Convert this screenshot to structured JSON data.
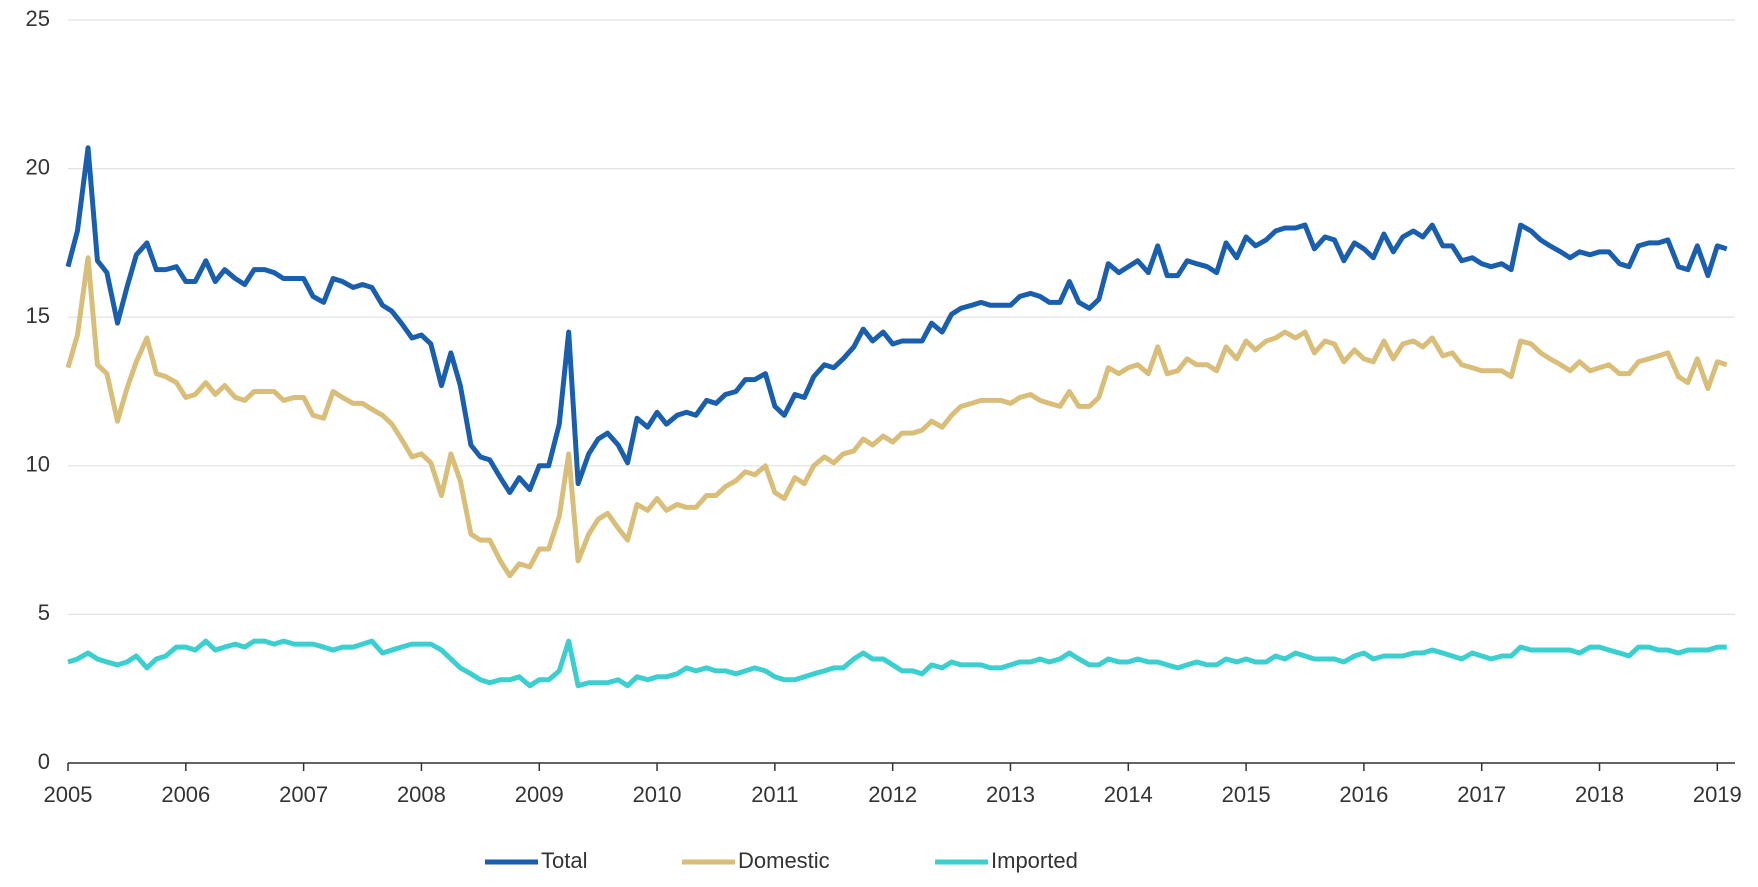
{
  "chart_data": {
    "type": "line",
    "x": [
      2005,
      2005.08,
      2005.17,
      2005.25,
      2005.33,
      2005.42,
      2005.5,
      2005.58,
      2005.67,
      2005.75,
      2005.83,
      2005.92,
      2006,
      2006.08,
      2006.17,
      2006.25,
      2006.33,
      2006.42,
      2006.5,
      2006.58,
      2006.67,
      2006.75,
      2006.83,
      2006.92,
      2007,
      2007.08,
      2007.17,
      2007.25,
      2007.33,
      2007.42,
      2007.5,
      2007.58,
      2007.67,
      2007.75,
      2007.83,
      2007.92,
      2008,
      2008.08,
      2008.17,
      2008.25,
      2008.33,
      2008.42,
      2008.5,
      2008.58,
      2008.67,
      2008.75,
      2008.83,
      2008.92,
      2009,
      2009.08,
      2009.17,
      2009.25,
      2009.33,
      2009.42,
      2009.5,
      2009.58,
      2009.67,
      2009.75,
      2009.83,
      2009.92,
      2010,
      2010.08,
      2010.17,
      2010.25,
      2010.33,
      2010.42,
      2010.5,
      2010.58,
      2010.67,
      2010.75,
      2010.83,
      2010.92,
      2011,
      2011.08,
      2011.17,
      2011.25,
      2011.33,
      2011.42,
      2011.5,
      2011.58,
      2011.67,
      2011.75,
      2011.83,
      2011.92,
      2012,
      2012.08,
      2012.17,
      2012.25,
      2012.33,
      2012.42,
      2012.5,
      2012.58,
      2012.67,
      2012.75,
      2012.83,
      2012.92,
      2013,
      2013.08,
      2013.17,
      2013.25,
      2013.33,
      2013.42,
      2013.5,
      2013.58,
      2013.67,
      2013.75,
      2013.83,
      2013.92,
      2014,
      2014.08,
      2014.17,
      2014.25,
      2014.33,
      2014.42,
      2014.5,
      2014.58,
      2014.67,
      2014.75,
      2014.83,
      2014.92,
      2015,
      2015.08,
      2015.17,
      2015.25,
      2015.33,
      2015.42,
      2015.5,
      2015.58,
      2015.67,
      2015.75,
      2015.83,
      2015.92,
      2016,
      2016.08,
      2016.17,
      2016.25,
      2016.33,
      2016.42,
      2016.5,
      2016.58,
      2016.67,
      2016.75,
      2016.83,
      2016.92,
      2017,
      2017.08,
      2017.17,
      2017.25,
      2017.33,
      2017.42,
      2017.5,
      2017.58,
      2017.67,
      2017.75,
      2017.83,
      2017.92,
      2018,
      2018.08,
      2018.17,
      2018.25,
      2018.33,
      2018.42,
      2018.5,
      2018.58,
      2018.67,
      2018.75,
      2018.83,
      2018.92,
      2019,
      2019.08
    ],
    "series": [
      {
        "name": "Total",
        "color": "#1a5fad",
        "values": [
          16.7,
          17.9,
          20.7,
          16.9,
          16.5,
          14.8,
          16.0,
          17.1,
          17.5,
          16.6,
          16.6,
          16.7,
          16.2,
          16.2,
          16.9,
          16.2,
          16.6,
          16.3,
          16.1,
          16.6,
          16.6,
          16.5,
          16.3,
          16.3,
          16.3,
          15.7,
          15.5,
          16.3,
          16.2,
          16.0,
          16.1,
          16.0,
          15.4,
          15.2,
          14.8,
          14.3,
          14.4,
          14.1,
          12.7,
          13.8,
          12.7,
          10.7,
          10.3,
          10.2,
          9.6,
          9.1,
          9.6,
          9.2,
          10.0,
          10.0,
          11.4,
          14.5,
          9.4,
          10.4,
          10.9,
          11.1,
          10.7,
          10.1,
          11.6,
          11.3,
          11.8,
          11.4,
          11.7,
          11.8,
          11.7,
          12.2,
          12.1,
          12.4,
          12.5,
          12.9,
          12.9,
          13.1,
          12.0,
          11.7,
          12.4,
          12.3,
          13.0,
          13.4,
          13.3,
          13.6,
          14.0,
          14.6,
          14.2,
          14.5,
          14.1,
          14.2,
          14.2,
          14.2,
          14.8,
          14.5,
          15.1,
          15.3,
          15.4,
          15.5,
          15.4,
          15.4,
          15.4,
          15.7,
          15.8,
          15.7,
          15.5,
          15.5,
          16.2,
          15.5,
          15.3,
          15.6,
          16.8,
          16.5,
          16.7,
          16.9,
          16.5,
          17.4,
          16.4,
          16.4,
          16.9,
          16.8,
          16.7,
          16.5,
          17.5,
          17.0,
          17.7,
          17.4,
          17.6,
          17.9,
          18.0,
          18.0,
          18.1,
          17.3,
          17.7,
          17.6,
          16.9,
          17.5,
          17.3,
          17.0,
          17.8,
          17.2,
          17.7,
          17.9,
          17.7,
          18.1,
          17.4,
          17.4,
          16.9,
          17.0,
          16.8,
          16.7,
          16.8,
          16.6,
          18.1,
          17.9,
          17.6,
          17.4,
          17.2,
          17.0,
          17.2,
          17.1,
          17.2,
          17.2,
          16.8,
          16.7,
          17.4,
          17.5,
          17.5,
          17.6,
          16.7,
          16.6,
          17.4,
          16.4,
          17.4,
          17.3
        ]
      },
      {
        "name": "Domestic",
        "color": "#d9be7a",
        "values": [
          13.3,
          14.4,
          17.0,
          13.4,
          13.1,
          11.5,
          12.6,
          13.5,
          14.3,
          13.1,
          13.0,
          12.8,
          12.3,
          12.4,
          12.8,
          12.4,
          12.7,
          12.3,
          12.2,
          12.5,
          12.5,
          12.5,
          12.2,
          12.3,
          12.3,
          11.7,
          11.6,
          12.5,
          12.3,
          12.1,
          12.1,
          11.9,
          11.7,
          11.4,
          10.9,
          10.3,
          10.4,
          10.1,
          9.0,
          10.4,
          9.5,
          7.7,
          7.5,
          7.5,
          6.8,
          6.3,
          6.7,
          6.6,
          7.2,
          7.2,
          8.3,
          10.4,
          6.8,
          7.7,
          8.2,
          8.4,
          7.9,
          7.5,
          8.7,
          8.5,
          8.9,
          8.5,
          8.7,
          8.6,
          8.6,
          9.0,
          9.0,
          9.3,
          9.5,
          9.8,
          9.7,
          10.0,
          9.1,
          8.9,
          9.6,
          9.4,
          10.0,
          10.3,
          10.1,
          10.4,
          10.5,
          10.9,
          10.7,
          11.0,
          10.8,
          11.1,
          11.1,
          11.2,
          11.5,
          11.3,
          11.7,
          12.0,
          12.1,
          12.2,
          12.2,
          12.2,
          12.1,
          12.3,
          12.4,
          12.2,
          12.1,
          12.0,
          12.5,
          12.0,
          12.0,
          12.3,
          13.3,
          13.1,
          13.3,
          13.4,
          13.1,
          14.0,
          13.1,
          13.2,
          13.6,
          13.4,
          13.4,
          13.2,
          14.0,
          13.6,
          14.2,
          13.9,
          14.2,
          14.3,
          14.5,
          14.3,
          14.5,
          13.8,
          14.2,
          14.1,
          13.5,
          13.9,
          13.6,
          13.5,
          14.2,
          13.6,
          14.1,
          14.2,
          14.0,
          14.3,
          13.7,
          13.8,
          13.4,
          13.3,
          13.2,
          13.2,
          13.2,
          13.0,
          14.2,
          14.1,
          13.8,
          13.6,
          13.4,
          13.2,
          13.5,
          13.2,
          13.3,
          13.4,
          13.1,
          13.1,
          13.5,
          13.6,
          13.7,
          13.8,
          13.0,
          12.8,
          13.6,
          12.6,
          13.5,
          13.4
        ]
      },
      {
        "name": "Imported",
        "color": "#3ccfcf",
        "values": [
          3.4,
          3.5,
          3.7,
          3.5,
          3.4,
          3.3,
          3.4,
          3.6,
          3.2,
          3.5,
          3.6,
          3.9,
          3.9,
          3.8,
          4.1,
          3.8,
          3.9,
          4.0,
          3.9,
          4.1,
          4.1,
          4.0,
          4.1,
          4.0,
          4.0,
          4.0,
          3.9,
          3.8,
          3.9,
          3.9,
          4.0,
          4.1,
          3.7,
          3.8,
          3.9,
          4.0,
          4.0,
          4.0,
          3.8,
          3.5,
          3.2,
          3.0,
          2.8,
          2.7,
          2.8,
          2.8,
          2.9,
          2.6,
          2.8,
          2.8,
          3.1,
          4.1,
          2.6,
          2.7,
          2.7,
          2.7,
          2.8,
          2.6,
          2.9,
          2.8,
          2.9,
          2.9,
          3.0,
          3.2,
          3.1,
          3.2,
          3.1,
          3.1,
          3.0,
          3.1,
          3.2,
          3.1,
          2.9,
          2.8,
          2.8,
          2.9,
          3.0,
          3.1,
          3.2,
          3.2,
          3.5,
          3.7,
          3.5,
          3.5,
          3.3,
          3.1,
          3.1,
          3.0,
          3.3,
          3.2,
          3.4,
          3.3,
          3.3,
          3.3,
          3.2,
          3.2,
          3.3,
          3.4,
          3.4,
          3.5,
          3.4,
          3.5,
          3.7,
          3.5,
          3.3,
          3.3,
          3.5,
          3.4,
          3.4,
          3.5,
          3.4,
          3.4,
          3.3,
          3.2,
          3.3,
          3.4,
          3.3,
          3.3,
          3.5,
          3.4,
          3.5,
          3.4,
          3.4,
          3.6,
          3.5,
          3.7,
          3.6,
          3.5,
          3.5,
          3.5,
          3.4,
          3.6,
          3.7,
          3.5,
          3.6,
          3.6,
          3.6,
          3.7,
          3.7,
          3.8,
          3.7,
          3.6,
          3.5,
          3.7,
          3.6,
          3.5,
          3.6,
          3.6,
          3.9,
          3.8,
          3.8,
          3.8,
          3.8,
          3.8,
          3.7,
          3.9,
          3.9,
          3.8,
          3.7,
          3.6,
          3.9,
          3.9,
          3.8,
          3.8,
          3.7,
          3.8,
          3.8,
          3.8,
          3.9,
          3.9
        ]
      }
    ],
    "xlim": [
      2005,
      2019.15
    ],
    "xticks": [
      2005,
      2006,
      2007,
      2008,
      2009,
      2010,
      2011,
      2012,
      2013,
      2014,
      2015,
      2016,
      2017,
      2018,
      2019
    ],
    "ylim": [
      0,
      25
    ],
    "yticks": [
      0,
      5,
      10,
      15,
      20,
      25
    ],
    "grid": true,
    "legend": "bottom"
  }
}
